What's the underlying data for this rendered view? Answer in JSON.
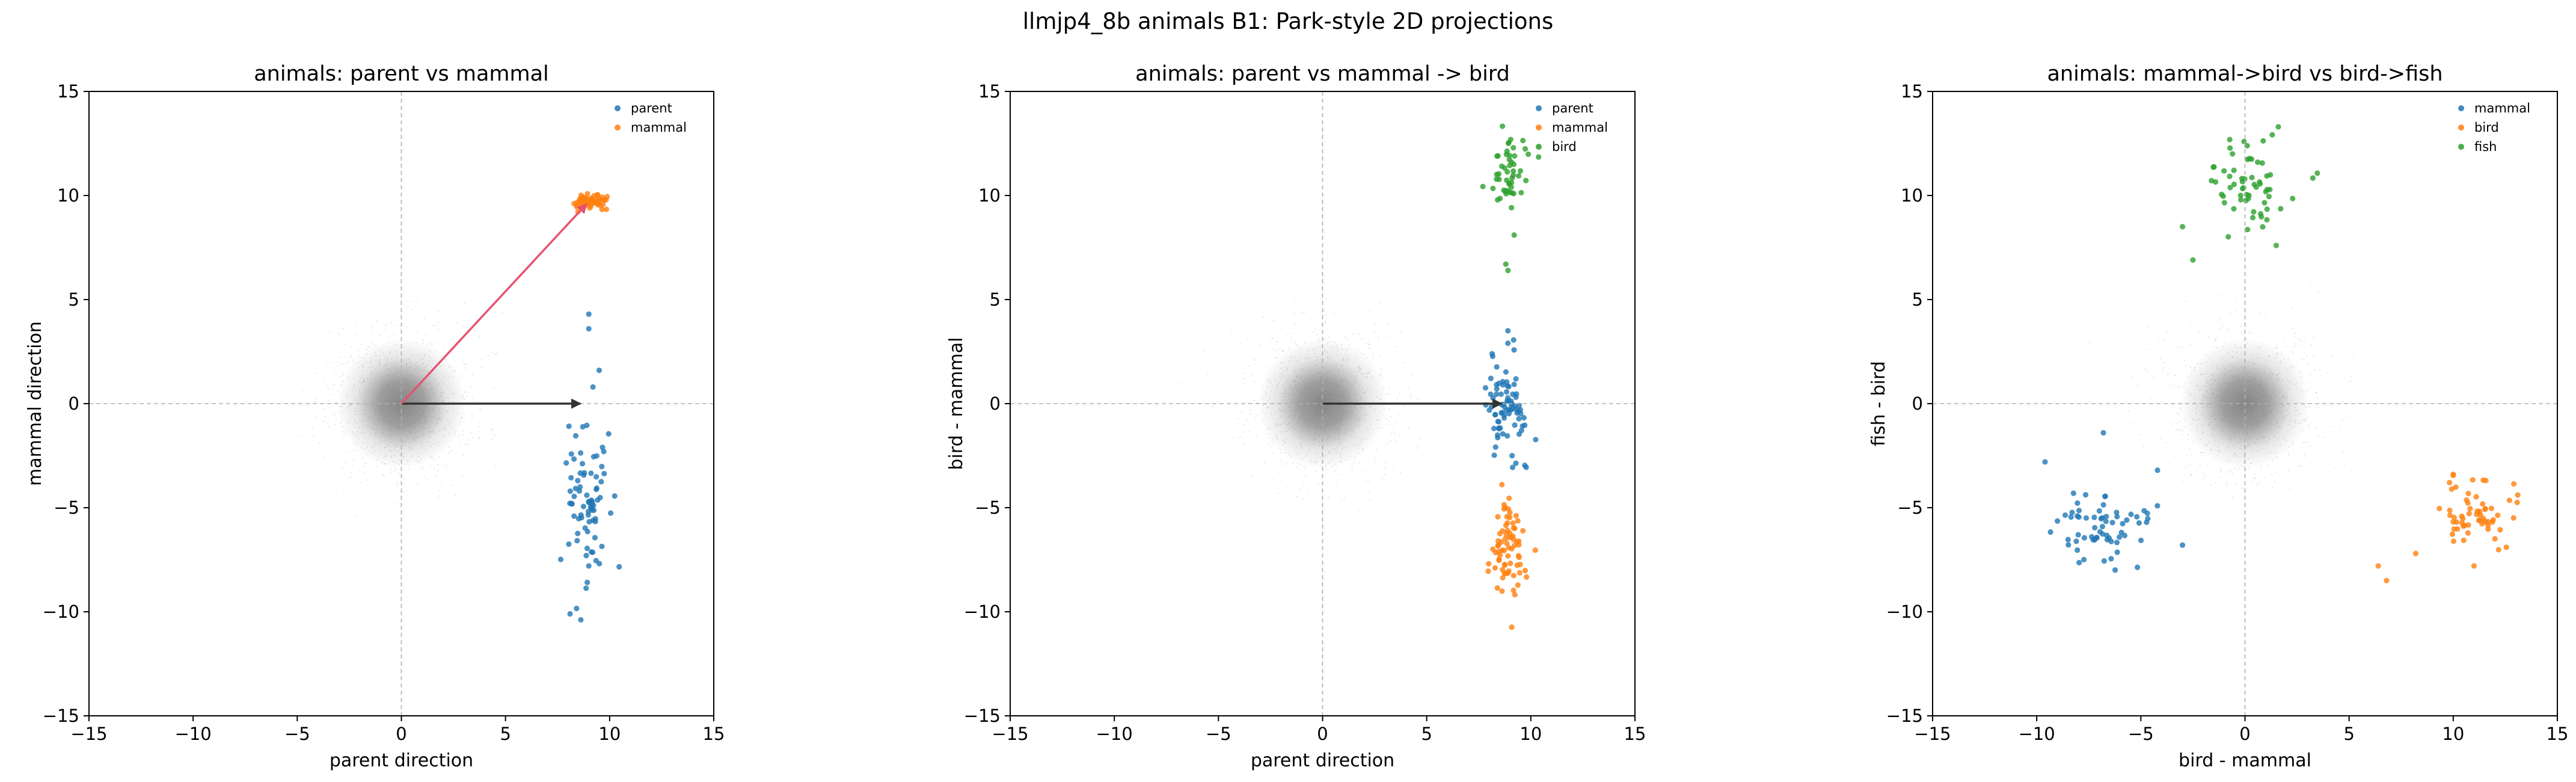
{
  "suptitle": "llmjp4_8b animals B1: Park-style 2D projections",
  "colors": {
    "blue": "#1f77b4",
    "orange": "#ff7f0e",
    "green": "#2ca02c",
    "gray": "#7f7f7f",
    "pink_arrow": "#e8506e",
    "dark_arrow": "#333333"
  },
  "chart_data": [
    {
      "type": "scatter",
      "title": "animals: parent vs mammal",
      "xlabel": "parent direction",
      "ylabel": "mammal direction",
      "xlim": [
        -15,
        15
      ],
      "ylim": [
        -15,
        15
      ],
      "xticks": [
        "−15",
        "−10",
        "−5",
        "0",
        "5",
        "10",
        "15"
      ],
      "yticks": [
        "−15",
        "−10",
        "−5",
        "0",
        "5",
        "10",
        "15"
      ],
      "legend_position": "top-right",
      "background_cloud": {
        "center": [
          0,
          0
        ],
        "spread": 1.2,
        "color": "gray"
      },
      "arrows": [
        {
          "from": [
            0,
            0
          ],
          "to": [
            8.6,
            0
          ],
          "color": "dark_arrow"
        },
        {
          "from": [
            0,
            0
          ],
          "to": [
            8.9,
            9.6
          ],
          "color": "pink_arrow"
        }
      ],
      "series": [
        {
          "name": "parent",
          "color": "blue",
          "n": 80,
          "cx": 8.9,
          "cy": -4.8,
          "sx": 0.5,
          "sy": 2.0,
          "extra_points": [
            [
              9.0,
              4.3
            ],
            [
              9.0,
              3.6
            ],
            [
              9.5,
              1.6
            ],
            [
              9.2,
              0.8
            ],
            [
              8.1,
              -10.1
            ],
            [
              9.0,
              -7.8
            ]
          ]
        },
        {
          "name": "mammal",
          "color": "orange",
          "n": 60,
          "cx": 9.0,
          "cy": 9.7,
          "sx": 0.4,
          "sy": 0.2
        }
      ]
    },
    {
      "type": "scatter",
      "title": "animals: parent vs mammal -> bird",
      "xlabel": "parent direction",
      "ylabel": "bird - mammal",
      "xlim": [
        -15,
        15
      ],
      "ylim": [
        -15,
        15
      ],
      "xticks": [
        "−15",
        "−10",
        "−5",
        "0",
        "5",
        "10",
        "15"
      ],
      "yticks": [
        "−15",
        "−10",
        "−5",
        "0",
        "5",
        "10",
        "15"
      ],
      "legend_position": "top-right",
      "background_cloud": {
        "center": [
          0,
          0
        ],
        "spread": 1.2,
        "color": "gray"
      },
      "arrows": [
        {
          "from": [
            0,
            0
          ],
          "to": [
            8.6,
            0
          ],
          "color": "dark_arrow"
        }
      ],
      "series": [
        {
          "name": "parent",
          "color": "blue",
          "n": 80,
          "cx": 8.8,
          "cy": 0.0,
          "sx": 0.5,
          "sy": 1.3,
          "extra_points": [
            [
              8.9,
              3.5
            ],
            [
              8.9,
              2.9
            ],
            [
              9.1,
              -2.5
            ]
          ]
        },
        {
          "name": "mammal",
          "color": "orange",
          "n": 75,
          "cx": 8.9,
          "cy": -6.8,
          "sx": 0.4,
          "sy": 1.3
        },
        {
          "name": "bird",
          "color": "green",
          "n": 50,
          "cx": 8.9,
          "cy": 11.0,
          "sx": 0.5,
          "sy": 0.9,
          "extra_points": [
            [
              9.2,
              8.1
            ],
            [
              8.8,
              6.7
            ],
            [
              8.9,
              6.4
            ]
          ]
        }
      ]
    },
    {
      "type": "scatter",
      "title": "animals: mammal->bird vs bird->fish",
      "xlabel": "bird - mammal",
      "ylabel": "fish - bird",
      "xlim": [
        -15,
        15
      ],
      "ylim": [
        -15,
        15
      ],
      "xticks": [
        "−15",
        "−10",
        "−5",
        "0",
        "5",
        "10",
        "15"
      ],
      "yticks": [
        "−15",
        "−10",
        "−5",
        "0",
        "5",
        "10",
        "15"
      ],
      "legend_position": "top-right",
      "background_cloud": {
        "center": [
          0,
          0
        ],
        "spread": 1.2,
        "color": "gray"
      },
      "arrows": [],
      "series": [
        {
          "name": "mammal",
          "color": "blue",
          "n": 65,
          "cx": -7.0,
          "cy": -6.0,
          "sx": 1.2,
          "sy": 0.8,
          "extra_points": [
            [
              -9.6,
              -2.8
            ],
            [
              -6.8,
              -1.4
            ],
            [
              -4.2,
              -3.2
            ],
            [
              -3.0,
              -6.8
            ]
          ]
        },
        {
          "name": "bird",
          "color": "orange",
          "n": 60,
          "cx": 11.0,
          "cy": -5.5,
          "sx": 0.9,
          "sy": 0.8,
          "extra_points": [
            [
              6.4,
              -7.8
            ],
            [
              6.8,
              -8.5
            ],
            [
              8.2,
              -7.2
            ],
            [
              10.0,
              -3.4
            ]
          ]
        },
        {
          "name": "fish",
          "color": "green",
          "n": 60,
          "cx": 0.2,
          "cy": 10.5,
          "sx": 1.0,
          "sy": 1.0,
          "extra_points": [
            [
              -3.0,
              8.5
            ],
            [
              -2.5,
              6.9
            ],
            [
              1.6,
              13.3
            ],
            [
              -0.6,
              12.0
            ],
            [
              1.5,
              7.6
            ]
          ]
        }
      ]
    }
  ]
}
